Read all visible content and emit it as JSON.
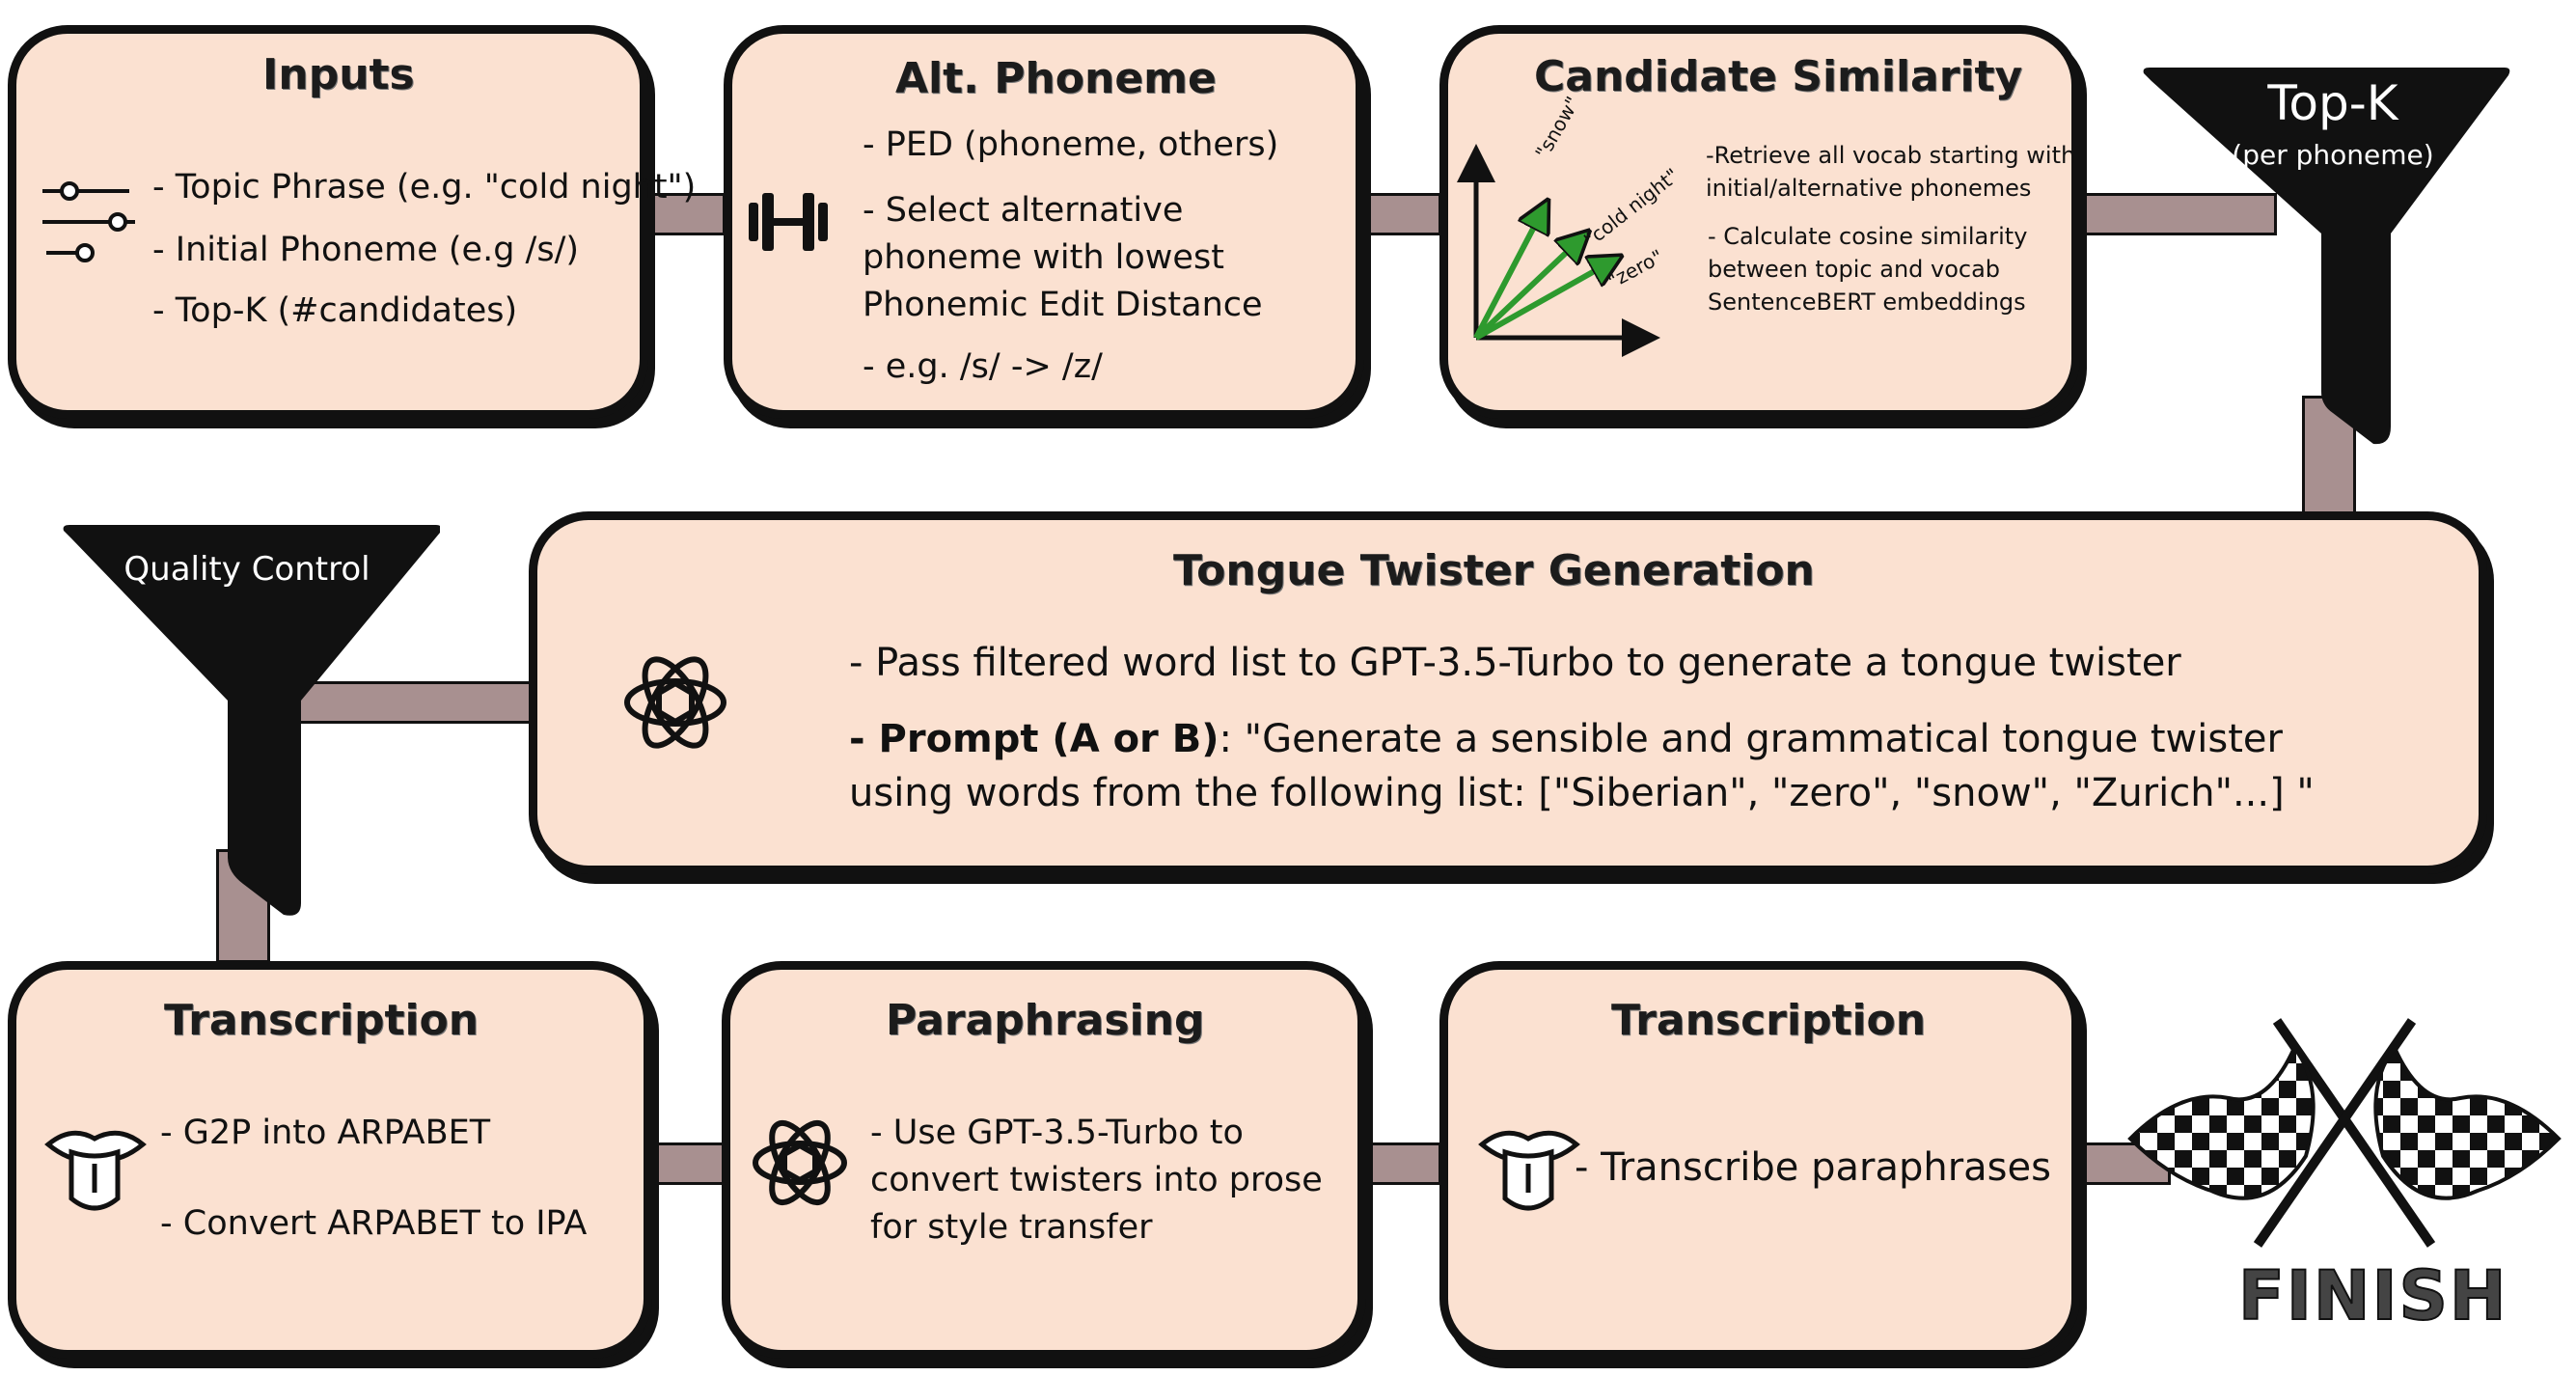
{
  "inputs": {
    "title": "Inputs",
    "items": [
      "- Topic Phrase (e.g. \"cold night\")",
      "- Initial Phoneme (e.g /s/)",
      "- Top-K (#candidates)"
    ]
  },
  "alt_phoneme": {
    "title": "Alt. Phoneme",
    "items": [
      "- PED (phoneme, others)",
      "- Select alternative phoneme with lowest Phonemic Edit Distance",
      "- e.g. /s/ -> /z/"
    ]
  },
  "candidate_similarity": {
    "title": "Candidate Similarity",
    "vector_labels": [
      "\"snow\"",
      "\"cold night\"",
      "\"zero\""
    ],
    "items": [
      "-Retrieve all vocab starting with",
      "initial/alternative phonemes",
      "- Calculate cosine similarity",
      "between topic and vocab",
      "SentenceBERT embeddings"
    ]
  },
  "topk": {
    "title": "Top-K",
    "subtitle": "(per phoneme)"
  },
  "quality_control": {
    "title": "Quality Control"
  },
  "generation": {
    "title": "Tongue Twister Generation",
    "line1": "- Pass filtered word list to GPT-3.5-Turbo to generate a tongue twister",
    "prompt_label": "- Prompt (A or B)",
    "prompt_text": ": \"Generate a sensible and grammatical tongue twister using words from the following list: [\"Siberian\", \"zero\", \"snow\", \"Zurich\"...] \""
  },
  "transcription1": {
    "title": "Transcription",
    "items": [
      "- G2P into ARPABET",
      "- Convert ARPABET to IPA"
    ]
  },
  "paraphrasing": {
    "title": "Paraphrasing",
    "items": [
      "- Use GPT-3.5-Turbo to convert twisters into prose for style transfer"
    ]
  },
  "transcription2": {
    "title": "Transcription",
    "items": [
      "- Transcribe paraphrases"
    ]
  },
  "finish": {
    "label": "FINISH"
  },
  "colors": {
    "box_fill": "#fbe1d1",
    "connector": "#a89090",
    "outline": "#111111",
    "arrow_green": "#2e9a2e"
  },
  "icons": [
    "sliders-icon",
    "dumbbell-icon",
    "vector-plot-icon",
    "funnel-icon",
    "openai-logo-icon",
    "mouth-tongue-icon",
    "checkered-flags-icon"
  ]
}
